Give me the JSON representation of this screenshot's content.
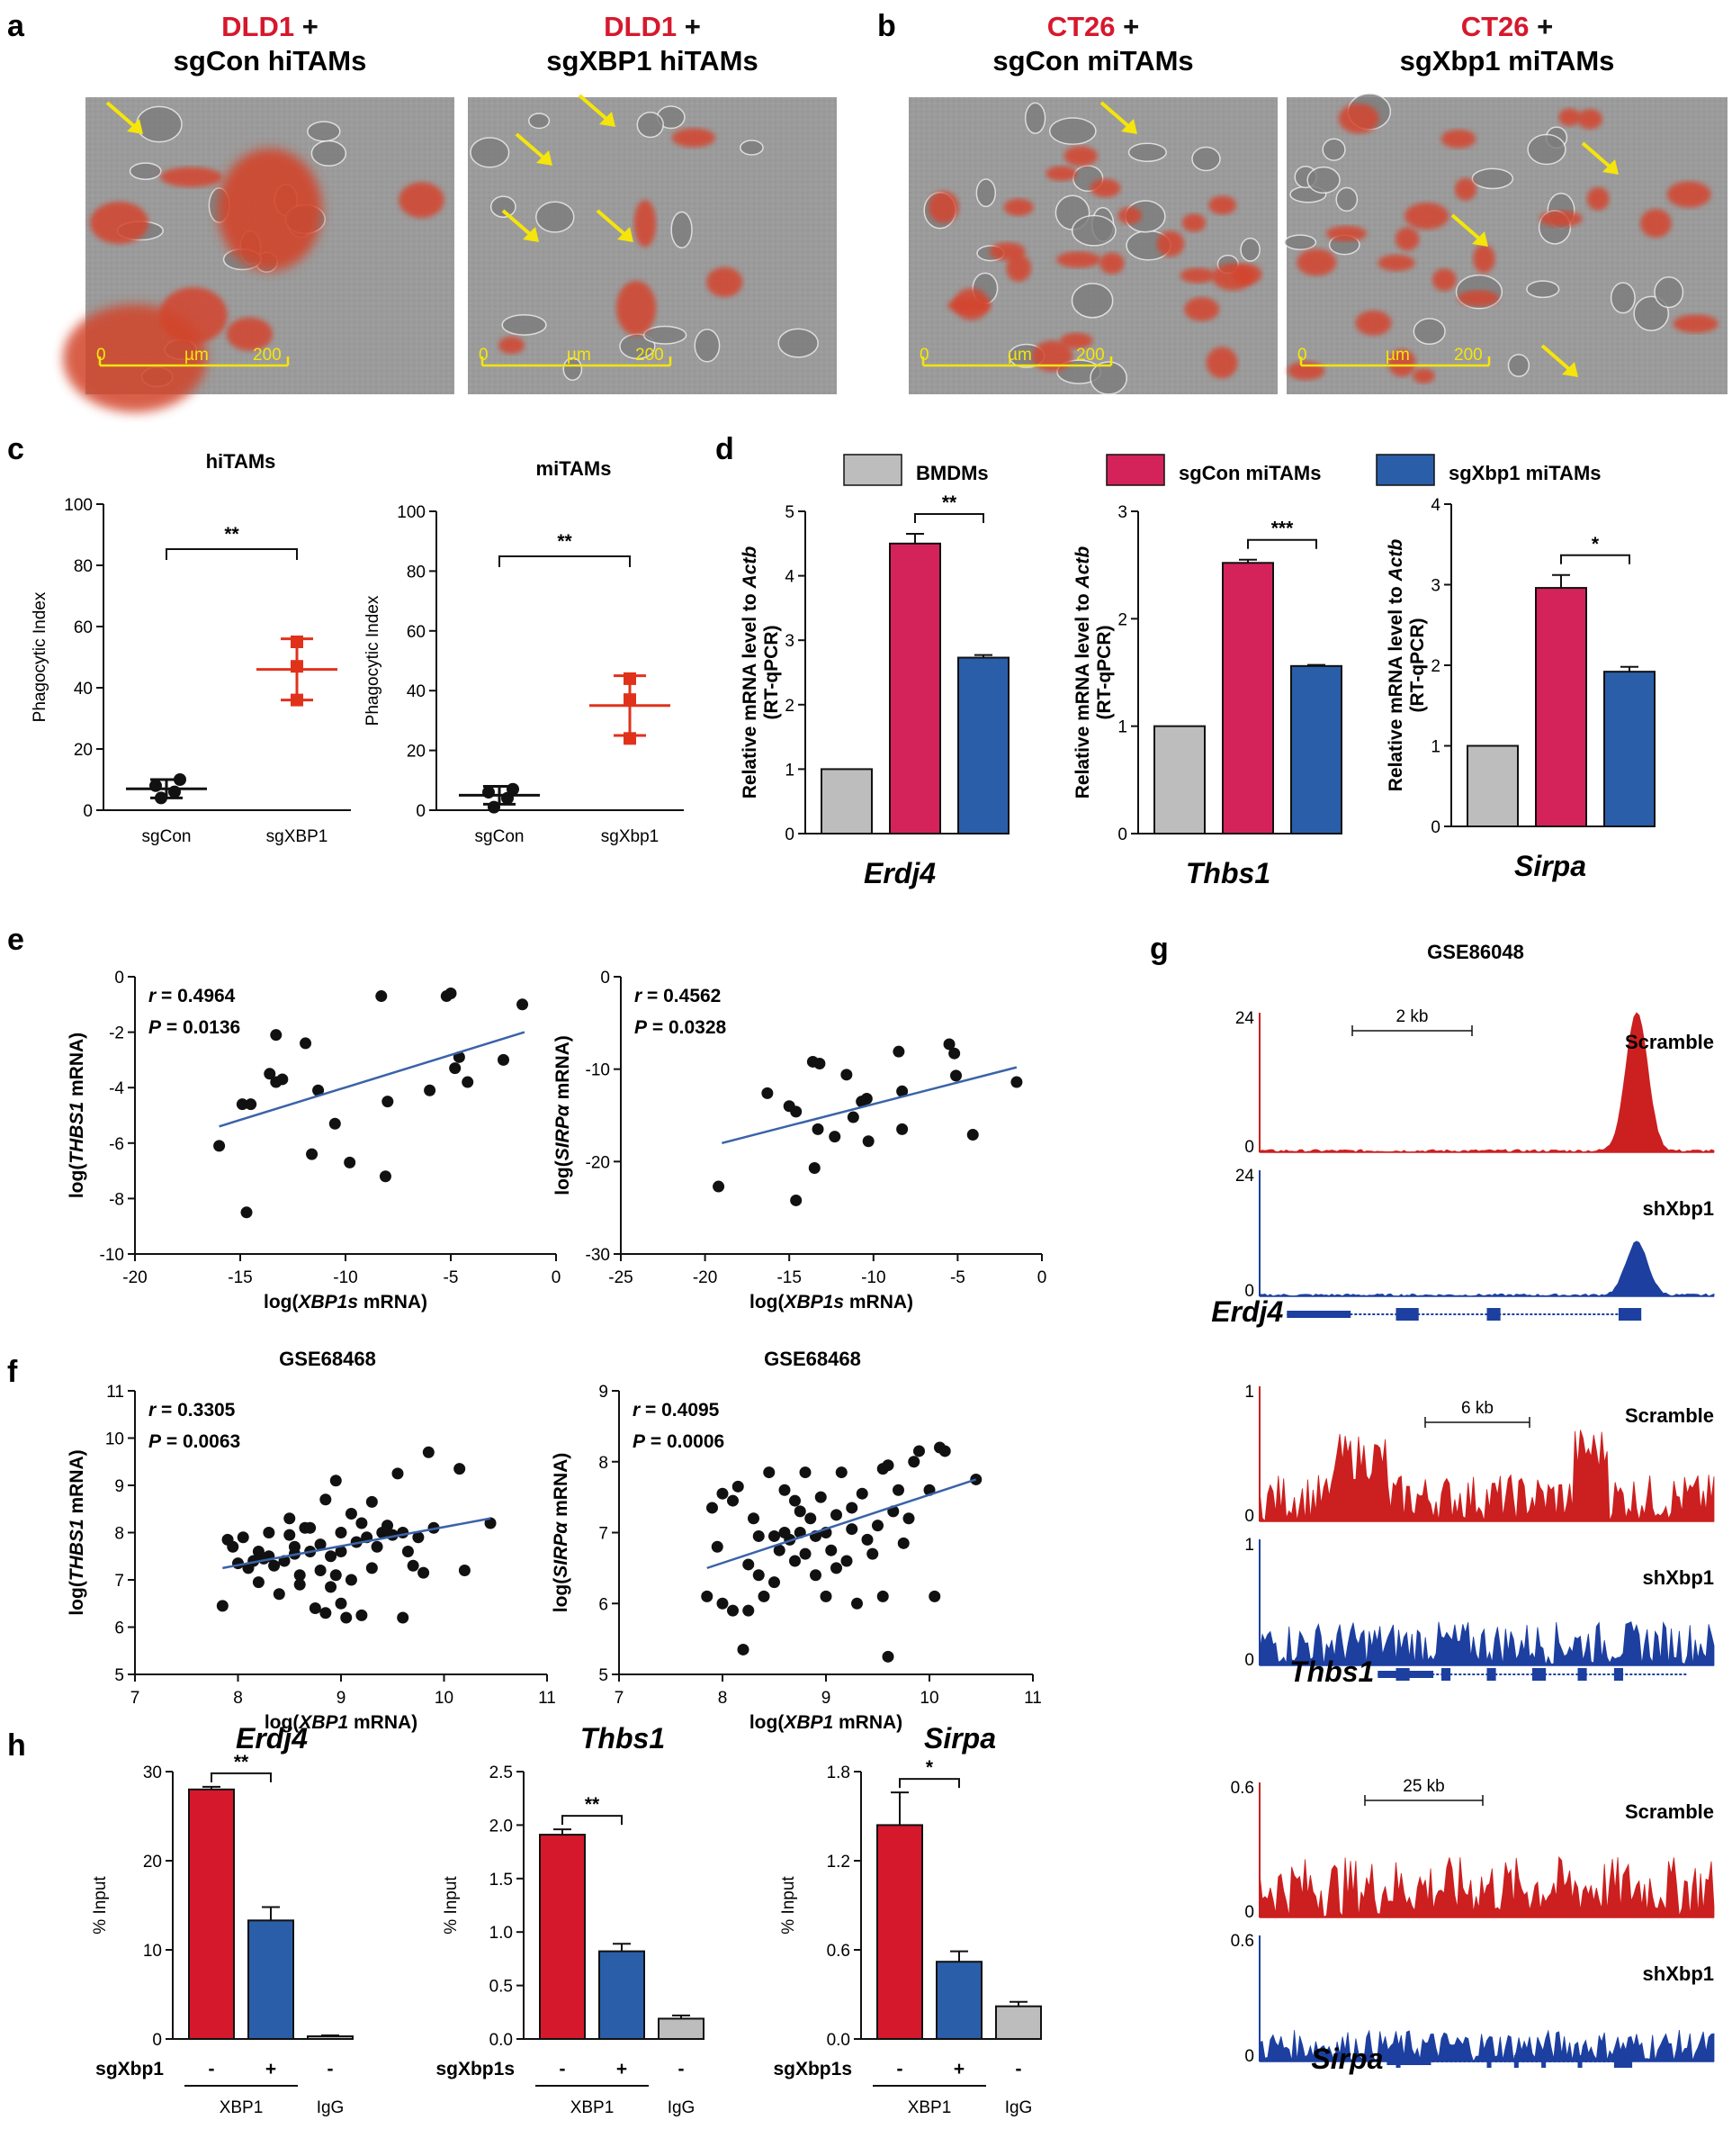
{
  "colors": {
    "red": "#d6182d",
    "blue": "#2a5ea8",
    "gray": "#bdbdbd",
    "crimson": "#d4225a",
    "yellow": "#f5e50a",
    "fit": "#3a63a8",
    "trackRed": "#cc1f1f",
    "trackBlue": "#1c3fa0"
  },
  "panel_labels": {
    "a": "a",
    "b": "b",
    "c": "c",
    "d": "d",
    "e": "e",
    "f": "f",
    "g": "g",
    "h": "h"
  },
  "microscopy": {
    "images": [
      {
        "line1_red": "DLD1",
        "line1_rest": " +",
        "line2": "sgCon hiTAMs"
      },
      {
        "line1_red": "DLD1",
        "line1_rest": " +",
        "line2": "sgXBP1  hiTAMs"
      },
      {
        "line1_red": "CT26",
        "line1_rest": " +",
        "line2": "sgCon miTAMs"
      },
      {
        "line1_red": "CT26",
        "line1_rest": " +",
        "line2": "sgXbp1 miTAMs"
      }
    ],
    "scalebar": {
      "start": "0",
      "unit": "µm",
      "end": "200"
    }
  },
  "chart_data": [
    {
      "id": "c1",
      "type": "scatter",
      "title": "hiTAMs",
      "ylabel": "Phagocytic Index",
      "ylim": [
        0,
        100
      ],
      "yticks": [
        0,
        20,
        40,
        60,
        80,
        100
      ],
      "categories": [
        "sgCon",
        "sgXBP1"
      ],
      "groups": [
        {
          "name": "sgCon",
          "points": [
            4,
            6,
            8,
            10
          ],
          "mean": 7,
          "sd": 3,
          "color": "black"
        },
        {
          "name": "sgXBP1",
          "points": [
            36,
            47,
            55
          ],
          "mean": 46,
          "sd": 10,
          "color": "red"
        }
      ],
      "significance": "**"
    },
    {
      "id": "c2",
      "type": "scatter",
      "title": "miTAMs",
      "ylabel": "Phagocytic Index",
      "ylim": [
        0,
        100
      ],
      "yticks": [
        0,
        20,
        40,
        60,
        80,
        100
      ],
      "categories": [
        "sgCon",
        "sgXbp1"
      ],
      "groups": [
        {
          "name": "sgCon",
          "points": [
            1,
            4,
            6,
            7
          ],
          "mean": 5,
          "sd": 3,
          "color": "black"
        },
        {
          "name": "sgXbp1",
          "points": [
            24,
            37,
            44
          ],
          "mean": 35,
          "sd": 10,
          "color": "red"
        }
      ],
      "significance": "**"
    },
    {
      "id": "d1",
      "type": "bar",
      "gene": "Erdj4",
      "ylabel_parts": [
        "Relative mRNA level to ",
        "Actb",
        "(RT-qPCR)"
      ],
      "ylim": [
        0,
        5
      ],
      "yticks": [
        0,
        1,
        2,
        3,
        4,
        5
      ],
      "series": [
        {
          "name": "BMDMs",
          "value": 1.0,
          "err": 0
        },
        {
          "name": "sgCon miTAMs",
          "value": 4.5,
          "err": 0.15
        },
        {
          "name": "sgXbp1 miTAMs",
          "value": 2.73,
          "err": 0.04
        }
      ],
      "significance": "**"
    },
    {
      "id": "d2",
      "type": "bar",
      "gene": "Thbs1",
      "ylabel_parts": [
        "Relative mRNA level to ",
        "Actb",
        "(RT-qPCR)"
      ],
      "ylim": [
        0,
        3
      ],
      "yticks": [
        0,
        1,
        2,
        3
      ],
      "series": [
        {
          "name": "BMDMs",
          "value": 1.0,
          "err": 0
        },
        {
          "name": "sgCon miTAMs",
          "value": 2.52,
          "err": 0.03
        },
        {
          "name": "sgXbp1 miTAMs",
          "value": 1.56,
          "err": 0.01
        }
      ],
      "significance": "***"
    },
    {
      "id": "d3",
      "type": "bar",
      "gene": "Sirpa",
      "ylabel_parts": [
        "Relative mRNA level to ",
        "Actb",
        "(RT-qPCR)"
      ],
      "ylim": [
        0,
        4
      ],
      "yticks": [
        0,
        1,
        2,
        3,
        4
      ],
      "series": [
        {
          "name": "BMDMs",
          "value": 1.0,
          "err": 0
        },
        {
          "name": "sgCon miTAMs",
          "value": 2.96,
          "err": 0.16
        },
        {
          "name": "sgXbp1 miTAMs",
          "value": 1.92,
          "err": 0.06
        }
      ],
      "significance": "*"
    },
    {
      "id": "e1",
      "type": "scatter",
      "xlabel_parts": [
        "log(",
        "XBP1s",
        " mRNA)"
      ],
      "ylabel_parts": [
        "log(",
        "THBS1",
        " mRNA)"
      ],
      "xlim": [
        -20,
        0
      ],
      "xticks": [
        -20,
        -15,
        -10,
        -5,
        0
      ],
      "ylim": [
        -10,
        0
      ],
      "yticks": [
        -10,
        -8,
        -6,
        -4,
        -2,
        0
      ],
      "r_label": "r",
      "r": "= 0.4964",
      "p_label": "P",
      "p": "= 0.0136",
      "fit": [
        [
          -16,
          -5.4
        ],
        [
          -1.5,
          -2.0
        ]
      ],
      "points": [
        [
          -16,
          -6.1
        ],
        [
          -14.9,
          -4.6
        ],
        [
          -14.5,
          -4.6
        ],
        [
          -14.7,
          -8.5
        ],
        [
          -13.6,
          -3.5
        ],
        [
          -13.3,
          -2.1
        ],
        [
          -13.3,
          -3.8
        ],
        [
          -13.0,
          -3.7
        ],
        [
          -11.9,
          -2.4
        ],
        [
          -11.3,
          -4.1
        ],
        [
          -11.6,
          -6.4
        ],
        [
          -10.5,
          -5.3
        ],
        [
          -9.8,
          -6.7
        ],
        [
          -8.3,
          -0.7
        ],
        [
          -8.1,
          -7.2
        ],
        [
          -8.0,
          -4.5
        ],
        [
          -6.0,
          -4.1
        ],
        [
          -5.2,
          -0.7
        ],
        [
          -5.0,
          -0.6
        ],
        [
          -4.6,
          -2.9
        ],
        [
          -4.8,
          -3.3
        ],
        [
          -4.2,
          -3.8
        ],
        [
          -2.5,
          -3.0
        ],
        [
          -1.6,
          -1.0
        ]
      ]
    },
    {
      "id": "e2",
      "type": "scatter",
      "xlabel_parts": [
        "log(",
        "XBP1s",
        " mRNA)"
      ],
      "ylabel_parts": [
        "log(",
        "SIRPα",
        " mRNA)"
      ],
      "xlim": [
        -25,
        0
      ],
      "xticks": [
        -25,
        -20,
        -15,
        -10,
        -5,
        0
      ],
      "ylim": [
        -30,
        0
      ],
      "yticks": [
        -30,
        -20,
        -10,
        0
      ],
      "r_label": "r",
      "r": "= 0.4562",
      "p_label": "P",
      "p": "= 0.0328",
      "fit": [
        [
          -19,
          -18
        ],
        [
          -1.5,
          -9.8
        ]
      ],
      "points": [
        [
          -19.2,
          -22.7
        ],
        [
          -16.3,
          -12.6
        ],
        [
          -15.0,
          -14.0
        ],
        [
          -14.6,
          -14.6
        ],
        [
          -14.6,
          -24.2
        ],
        [
          -13.6,
          -9.2
        ],
        [
          -13.2,
          -9.4
        ],
        [
          -13.5,
          -20.7
        ],
        [
          -13.3,
          -16.5
        ],
        [
          -12.3,
          -17.3
        ],
        [
          -11.6,
          -10.6
        ],
        [
          -11.2,
          -15.2
        ],
        [
          -10.7,
          -13.5
        ],
        [
          -10.4,
          -13.2
        ],
        [
          -10.3,
          -17.8
        ],
        [
          -8.5,
          -8.1
        ],
        [
          -8.3,
          -12.4
        ],
        [
          -8.3,
          -16.5
        ],
        [
          -5.5,
          -7.3
        ],
        [
          -5.2,
          -8.3
        ],
        [
          -5.1,
          -10.7
        ],
        [
          -4.1,
          -17.1
        ],
        [
          -1.5,
          -11.4
        ]
      ]
    },
    {
      "id": "f1",
      "type": "scatter",
      "title": "GSE68468",
      "xlabel_parts": [
        "log(",
        "XBP1",
        " mRNA)"
      ],
      "ylabel_parts": [
        "log(",
        "THBS1",
        " mRNA)"
      ],
      "xlim": [
        7,
        11
      ],
      "xticks": [
        7,
        8,
        9,
        10,
        11
      ],
      "ylim": [
        5,
        11
      ],
      "yticks": [
        5,
        6,
        7,
        8,
        9,
        10,
        11
      ],
      "r_label": "r",
      "r": "= 0.3305",
      "p_label": "P",
      "p": "= 0.0063",
      "fit": [
        [
          7.85,
          7.25
        ],
        [
          10.45,
          8.3
        ]
      ],
      "points": [
        [
          7.85,
          6.45
        ],
        [
          7.9,
          7.85
        ],
        [
          7.95,
          7.7
        ],
        [
          8.0,
          7.35
        ],
        [
          8.05,
          7.9
        ],
        [
          8.1,
          7.25
        ],
        [
          8.15,
          7.4
        ],
        [
          8.2,
          6.95
        ],
        [
          8.2,
          7.6
        ],
        [
          8.3,
          7.5
        ],
        [
          8.3,
          8.0
        ],
        [
          8.35,
          7.3
        ],
        [
          8.4,
          6.7
        ],
        [
          8.45,
          7.4
        ],
        [
          8.5,
          7.95
        ],
        [
          8.5,
          8.3
        ],
        [
          8.55,
          7.7
        ],
        [
          8.6,
          7.1
        ],
        [
          8.6,
          6.9
        ],
        [
          8.65,
          8.1
        ],
        [
          8.7,
          8.1
        ],
        [
          8.7,
          7.6
        ],
        [
          8.75,
          6.4
        ],
        [
          8.8,
          7.75
        ],
        [
          8.8,
          7.2
        ],
        [
          8.85,
          6.3
        ],
        [
          8.85,
          8.7
        ],
        [
          8.9,
          7.5
        ],
        [
          8.9,
          6.85
        ],
        [
          8.95,
          7.1
        ],
        [
          9.0,
          6.5
        ],
        [
          9.0,
          8.0
        ],
        [
          9.0,
          7.6
        ],
        [
          9.05,
          6.2
        ],
        [
          9.1,
          7.0
        ],
        [
          9.1,
          8.4
        ],
        [
          9.15,
          7.8
        ],
        [
          9.2,
          6.25
        ],
        [
          9.2,
          8.2
        ],
        [
          9.25,
          7.9
        ],
        [
          9.3,
          7.25
        ],
        [
          9.3,
          8.65
        ],
        [
          9.35,
          7.7
        ],
        [
          9.4,
          8.0
        ],
        [
          9.45,
          8.15
        ],
        [
          9.5,
          7.95
        ],
        [
          9.55,
          9.25
        ],
        [
          9.6,
          8.0
        ],
        [
          9.6,
          6.2
        ],
        [
          9.65,
          7.6
        ],
        [
          9.7,
          7.3
        ],
        [
          9.75,
          7.9
        ],
        [
          9.8,
          7.15
        ],
        [
          9.85,
          9.7
        ],
        [
          9.9,
          8.1
        ],
        [
          10.15,
          9.35
        ],
        [
          10.2,
          7.2
        ],
        [
          10.45,
          8.2
        ],
        [
          8.25,
          7.45
        ],
        [
          8.55,
          7.55
        ],
        [
          8.95,
          9.1
        ]
      ]
    },
    {
      "id": "f2",
      "type": "scatter",
      "title": "GSE68468",
      "xlabel_parts": [
        "log(",
        "XBP1",
        " mRNA)"
      ],
      "ylabel_parts": [
        "log(",
        "SIRPα",
        " mRNA)"
      ],
      "xlim": [
        7,
        11
      ],
      "xticks": [
        7,
        8,
        9,
        10,
        11
      ],
      "ylim": [
        5,
        9
      ],
      "yticks": [
        5,
        6,
        7,
        8,
        9
      ],
      "r_label": "r",
      "r": "= 0.4095",
      "p_label": "P",
      "p": "= 0.0006",
      "fit": [
        [
          7.85,
          6.5
        ],
        [
          10.45,
          7.75
        ]
      ],
      "points": [
        [
          7.85,
          6.1
        ],
        [
          7.9,
          7.35
        ],
        [
          7.95,
          6.8
        ],
        [
          8.0,
          7.55
        ],
        [
          8.0,
          6.0
        ],
        [
          8.1,
          7.45
        ],
        [
          8.1,
          5.9
        ],
        [
          8.15,
          7.65
        ],
        [
          8.2,
          5.35
        ],
        [
          8.25,
          6.55
        ],
        [
          8.25,
          5.9
        ],
        [
          8.3,
          7.2
        ],
        [
          8.35,
          6.4
        ],
        [
          8.4,
          6.1
        ],
        [
          8.45,
          7.85
        ],
        [
          8.5,
          6.95
        ],
        [
          8.5,
          6.3
        ],
        [
          8.55,
          6.75
        ],
        [
          8.6,
          7.6
        ],
        [
          8.6,
          7.0
        ],
        [
          8.65,
          6.9
        ],
        [
          8.7,
          7.45
        ],
        [
          8.7,
          6.6
        ],
        [
          8.75,
          7.0
        ],
        [
          8.8,
          7.85
        ],
        [
          8.8,
          6.7
        ],
        [
          8.85,
          7.2
        ],
        [
          8.9,
          6.95
        ],
        [
          8.9,
          6.4
        ],
        [
          8.95,
          7.5
        ],
        [
          9.0,
          7.0
        ],
        [
          9.0,
          6.1
        ],
        [
          9.05,
          6.75
        ],
        [
          9.1,
          7.25
        ],
        [
          9.1,
          6.5
        ],
        [
          9.15,
          7.85
        ],
        [
          9.2,
          6.6
        ],
        [
          9.25,
          7.05
        ],
        [
          9.3,
          6.0
        ],
        [
          9.35,
          7.55
        ],
        [
          9.4,
          6.9
        ],
        [
          9.45,
          6.7
        ],
        [
          9.5,
          7.1
        ],
        [
          9.55,
          7.9
        ],
        [
          9.55,
          6.1
        ],
        [
          9.6,
          7.95
        ],
        [
          9.6,
          5.25
        ],
        [
          9.65,
          7.3
        ],
        [
          9.7,
          7.6
        ],
        [
          9.75,
          6.85
        ],
        [
          9.8,
          7.2
        ],
        [
          9.85,
          8.0
        ],
        [
          9.9,
          8.15
        ],
        [
          10.0,
          7.6
        ],
        [
          10.05,
          6.1
        ],
        [
          10.1,
          8.2
        ],
        [
          10.15,
          8.15
        ],
        [
          10.45,
          7.75
        ],
        [
          8.35,
          6.95
        ],
        [
          8.75,
          7.3
        ],
        [
          9.25,
          7.35
        ]
      ]
    },
    {
      "id": "h1",
      "type": "bar",
      "gene": "Erdj4",
      "ylabel": "% Input",
      "ylim": [
        0,
        30
      ],
      "yticks": [
        0,
        10,
        20,
        30
      ],
      "yticklabels": [
        "0",
        "10",
        "20",
        "30"
      ],
      "series": [
        {
          "name": "XBP1 -",
          "value": 28.0,
          "err": 0.3
        },
        {
          "name": "XBP1 +",
          "value": 13.3,
          "err": 1.5
        },
        {
          "name": "IgG -",
          "value": 0.3,
          "err": 0.1
        }
      ],
      "signs": [
        "-",
        "+",
        "-"
      ],
      "row_label": "sgXbp1",
      "group_labels": [
        "XBP1",
        "IgG"
      ],
      "significance": "**"
    },
    {
      "id": "h2",
      "type": "bar",
      "gene": "Thbs1",
      "ylabel": "% Input",
      "ylim": [
        0,
        2.5
      ],
      "yticks": [
        0,
        0.5,
        1,
        1.5,
        2,
        2.5
      ],
      "yticklabels": [
        "0.0",
        "0.5",
        "1.0",
        "1.5",
        "2.0",
        "2.5"
      ],
      "series": [
        {
          "name": "XBP1 -",
          "value": 1.91,
          "err": 0.05
        },
        {
          "name": "XBP1 +",
          "value": 0.82,
          "err": 0.07
        },
        {
          "name": "IgG -",
          "value": 0.19,
          "err": 0.03
        }
      ],
      "signs": [
        "-",
        "+",
        "-"
      ],
      "row_label": "sgXbp1s",
      "group_labels": [
        "XBP1",
        "IgG"
      ],
      "significance": "**"
    },
    {
      "id": "h3",
      "type": "bar",
      "gene": "Sirpa",
      "ylabel": "% Input",
      "ylim": [
        0,
        1.8
      ],
      "yticks": [
        0,
        0.6,
        1.2,
        1.8
      ],
      "yticklabels": [
        "0.0",
        "0.6",
        "1.2",
        "1.8"
      ],
      "series": [
        {
          "name": "XBP1 -",
          "value": 1.44,
          "err": 0.22
        },
        {
          "name": "XBP1 +",
          "value": 0.52,
          "err": 0.07
        },
        {
          "name": "IgG -",
          "value": 0.22,
          "err": 0.03
        }
      ],
      "signs": [
        "-",
        "+",
        "-"
      ],
      "row_label": "sgXbp1s",
      "group_labels": [
        "XBP1",
        "IgG"
      ],
      "significance": "*"
    }
  ],
  "legend_d": [
    "BMDMs",
    "sgCon miTAMs",
    "sgXbp1 miTAMs"
  ],
  "tracks": {
    "title": "GSE86048",
    "loci": [
      {
        "gene": "Erdj4",
        "scale": "2 kb",
        "ymax_top": "24",
        "ymax_bottom": "24",
        "zero": "0",
        "top": "Scramble",
        "bottom": "shXbp1"
      },
      {
        "gene": "Thbs1",
        "scale": "6 kb",
        "ymax_top": "1",
        "ymax_bottom": "1",
        "zero": "0",
        "top": "Scramble",
        "bottom": "shXbp1"
      },
      {
        "gene": "Sirpa",
        "scale": "25 kb",
        "ymax_top": "0.6",
        "ymax_bottom": "0.6",
        "zero": "0",
        "top": "Scramble",
        "bottom": "shXbp1"
      }
    ]
  }
}
